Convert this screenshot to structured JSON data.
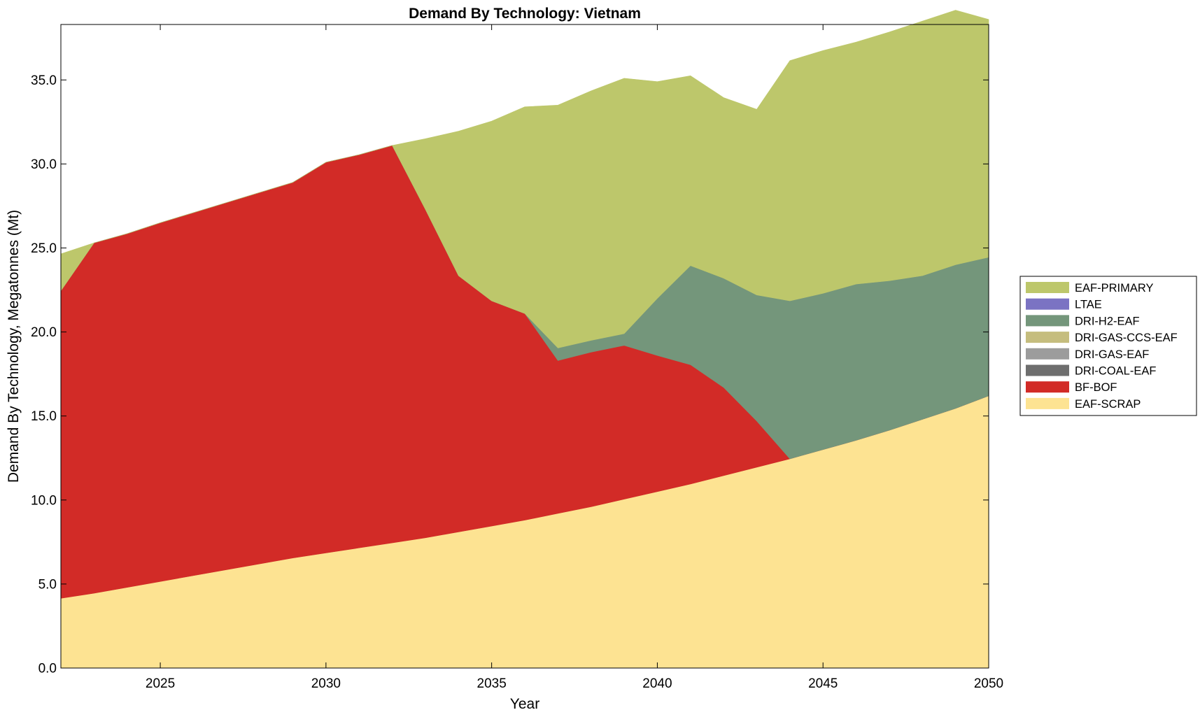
{
  "chart_data": {
    "type": "area",
    "stacked": true,
    "title": "Demand By Technology: Vietnam",
    "xlabel": "Year",
    "ylabel": "Demand By Technology, Megatonnes (Mt)",
    "xlim": [
      2022,
      2050
    ],
    "ylim": [
      0,
      38.3
    ],
    "x_ticks": [
      2025,
      2030,
      2035,
      2040,
      2045,
      2050
    ],
    "y_ticks": [
      "0.0",
      "5.0",
      "10.0",
      "15.0",
      "20.0",
      "25.0",
      "30.0",
      "35.0"
    ],
    "legend_position": "right",
    "legend_order": [
      "EAF-PRIMARY",
      "LTAE",
      "DRI-H2-EAF",
      "DRI-GAS-CCS-EAF",
      "DRI-GAS-EAF",
      "DRI-COAL-EAF",
      "BF-BOF",
      "EAF-SCRAP"
    ],
    "x": [
      2022,
      2023,
      2024,
      2025,
      2026,
      2027,
      2028,
      2029,
      2030,
      2031,
      2032,
      2033,
      2034,
      2035,
      2036,
      2037,
      2038,
      2039,
      2040,
      2041,
      2042,
      2043,
      2044,
      2045,
      2046,
      2047,
      2048,
      2049,
      2050
    ],
    "series": [
      {
        "name": "EAF-SCRAP",
        "color": "#FDE392",
        "values": [
          4.15,
          4.45,
          4.8,
          5.15,
          5.5,
          5.85,
          6.2,
          6.55,
          6.85,
          7.15,
          7.45,
          7.75,
          8.1,
          8.45,
          8.8,
          9.2,
          9.6,
          10.05,
          10.5,
          10.95,
          11.45,
          11.95,
          12.45,
          13.0,
          13.55,
          14.15,
          14.8,
          15.45,
          16.2
        ]
      },
      {
        "name": "BF-BOF",
        "color": "#D22B27",
        "values": [
          18.3,
          20.85,
          21.05,
          21.35,
          21.6,
          21.85,
          22.1,
          22.35,
          23.25,
          23.4,
          23.65,
          19.55,
          15.25,
          13.4,
          12.3,
          9.1,
          9.2,
          9.15,
          8.1,
          7.1,
          5.25,
          2.75,
          0,
          0,
          0,
          0,
          0,
          0,
          0
        ]
      },
      {
        "name": "DRI-COAL-EAF",
        "color": "#6E6E6E",
        "values": [
          0,
          0,
          0,
          0,
          0,
          0,
          0,
          0,
          0,
          0,
          0,
          0,
          0,
          0,
          0,
          0,
          0,
          0,
          0,
          0,
          0,
          0,
          0,
          0,
          0,
          0,
          0,
          0,
          0
        ]
      },
      {
        "name": "DRI-GAS-EAF",
        "color": "#9C9C9C",
        "values": [
          0,
          0,
          0,
          0,
          0,
          0,
          0,
          0,
          0,
          0,
          0,
          0,
          0,
          0,
          0,
          0,
          0,
          0,
          0,
          0,
          0,
          0,
          0,
          0,
          0,
          0,
          0,
          0,
          0
        ]
      },
      {
        "name": "DRI-GAS-CCS-EAF",
        "color": "#C5BD7E",
        "values": [
          0,
          0,
          0,
          0,
          0,
          0,
          0,
          0,
          0,
          0,
          0,
          0,
          0,
          0,
          0,
          0,
          0,
          0,
          0,
          0,
          0,
          0,
          0,
          0,
          0,
          0,
          0,
          0,
          0
        ]
      },
      {
        "name": "DRI-H2-EAF",
        "color": "#74967B",
        "values": [
          0,
          0,
          0,
          0,
          0,
          0,
          0,
          0,
          0,
          0,
          0,
          0,
          0,
          0,
          0,
          0.75,
          0.7,
          0.7,
          3.4,
          5.9,
          6.5,
          7.5,
          9.4,
          9.3,
          9.3,
          8.9,
          8.55,
          8.55,
          8.25
        ]
      },
      {
        "name": "LTAE",
        "color": "#7B73C3",
        "values": [
          0,
          0,
          0,
          0,
          0,
          0,
          0,
          0,
          0,
          0,
          0,
          0,
          0,
          0,
          0,
          0,
          0,
          0,
          0,
          0,
          0,
          0,
          0,
          0,
          0,
          0,
          0,
          0,
          0
        ]
      },
      {
        "name": "EAF-PRIMARY",
        "color": "#BDC76B",
        "values": [
          2.2,
          0,
          0,
          0,
          0,
          0,
          0,
          0,
          0,
          0,
          0,
          4.2,
          8.6,
          10.7,
          12.3,
          14.45,
          14.85,
          15.2,
          12.9,
          11.3,
          10.75,
          11.05,
          14.3,
          14.45,
          14.4,
          14.8,
          15.15,
          15.15,
          14.15
        ]
      }
    ]
  }
}
